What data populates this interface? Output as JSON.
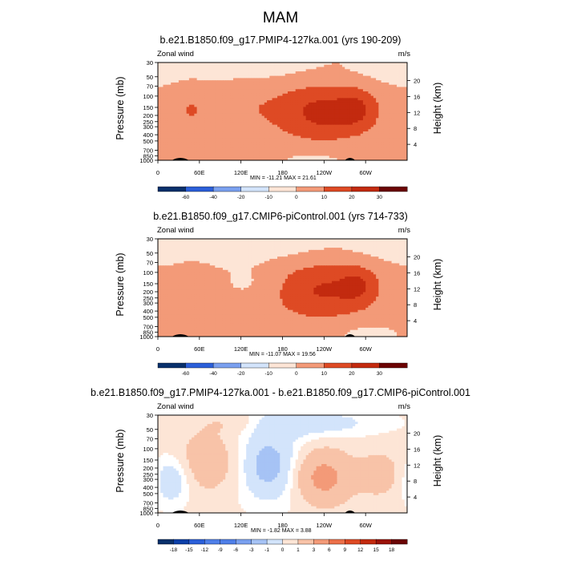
{
  "figure_title": "MAM",
  "panels": [
    {
      "title": "b.e21.B1850.f09_g17.PMIP4-127ka.001 (yrs 190-209)",
      "left_string": "Zonal wind",
      "right_string": "m/s",
      "stats": "MIN = -11.21  MAX =  21.61"
    },
    {
      "title": "b.e21.B1850.f09_g17.CMIP6-piControl.001 (yrs 714-733)",
      "left_string": "Zonal wind",
      "right_string": "m/s",
      "stats": "MIN = -11.07  MAX =  19.56"
    },
    {
      "title": "b.e21.B1850.f09_g17.PMIP4-127ka.001 - b.e21.B1850.f09_g17.CMIP6-piControl.001",
      "left_string": "Zonal wind",
      "right_string": "m/s",
      "stats": "MIN = -1.82  MAX =  3.88"
    }
  ],
  "axes": {
    "left_label": "Pressure (mb)",
    "right_label": "Height (km)"
  },
  "colors": {
    "neg_palette": [
      "#08306b",
      "#0b3fa8",
      "#2b5fd9",
      "#4f7fe8",
      "#7aa0ef",
      "#a6c3f5",
      "#d3e4fb"
    ],
    "pos_palette": [
      "#fde5d6",
      "#f8c3a8",
      "#f39a78",
      "#ec7049",
      "#de4a24",
      "#c32a0f",
      "#9b1207",
      "#6b0303"
    ]
  },
  "chart_data": [
    {
      "type": "heatmap",
      "variable": "Zonal wind",
      "units": "m/s",
      "x_ticks": [
        "0",
        "60E",
        "120E",
        "180",
        "120W",
        "60W"
      ],
      "x_tick_lon": [
        0,
        60,
        120,
        180,
        240,
        300
      ],
      "xlim": [
        0,
        360
      ],
      "y_ticks": [
        30,
        50,
        70,
        100,
        150,
        200,
        250,
        300,
        400,
        500,
        700,
        850,
        1000
      ],
      "ylim": [
        1000,
        30
      ],
      "y_log": true,
      "right_ticks_km": [
        4,
        8,
        12,
        16,
        20
      ],
      "levels": [
        -60,
        -40,
        -20,
        -10,
        0,
        10,
        20,
        30
      ],
      "colorbar_labels": [
        "-60",
        "-40",
        "-20",
        "-10",
        "0",
        "10",
        "20",
        "30"
      ],
      "min": -11.21,
      "max": 21.61,
      "features": [
        {
          "lon": 240,
          "p": 180,
          "value": 21,
          "wx": 45,
          "wy": 1.5
        },
        {
          "lon": 290,
          "p": 160,
          "value": 12,
          "wx": 20,
          "wy": 1.0
        },
        {
          "lon": 120,
          "p": 150,
          "value": 7,
          "wx": 55,
          "wy": 1.6
        },
        {
          "lon": 45,
          "p": 170,
          "value": 6,
          "wx": 18,
          "wy": 1.5
        },
        {
          "lon": 100,
          "p": 600,
          "value": 5,
          "wx": 25,
          "wy": 1.0
        },
        {
          "lon": 80,
          "p": 40,
          "value": -6,
          "wx": 160,
          "wy": 0.9
        },
        {
          "lon": 230,
          "p": 850,
          "value": -4,
          "wx": 50,
          "wy": 0.6
        },
        {
          "lon": 10,
          "p": 800,
          "value": 4,
          "wx": 15,
          "wy": 0.6
        }
      ]
    },
    {
      "type": "heatmap",
      "variable": "Zonal wind",
      "units": "m/s",
      "x_ticks": [
        "0",
        "60E",
        "120E",
        "180",
        "120W",
        "60W"
      ],
      "x_tick_lon": [
        0,
        60,
        120,
        180,
        240,
        300
      ],
      "xlim": [
        0,
        360
      ],
      "y_ticks": [
        30,
        50,
        70,
        100,
        150,
        200,
        250,
        300,
        400,
        500,
        700,
        850,
        1000
      ],
      "ylim": [
        1000,
        30
      ],
      "y_log": true,
      "right_ticks_km": [
        4,
        8,
        12,
        16,
        20
      ],
      "levels": [
        -60,
        -40,
        -20,
        -10,
        0,
        10,
        20,
        30
      ],
      "colorbar_labels": [
        "-60",
        "-40",
        "-20",
        "-10",
        "0",
        "10",
        "20",
        "30"
      ],
      "min": -11.07,
      "max": 19.56,
      "features": [
        {
          "lon": 235,
          "p": 190,
          "value": 19,
          "wx": 50,
          "wy": 1.5
        },
        {
          "lon": 290,
          "p": 160,
          "value": 12,
          "wx": 20,
          "wy": 1.0
        },
        {
          "lon": 50,
          "p": 180,
          "value": 5,
          "wx": 20,
          "wy": 1.4
        },
        {
          "lon": 110,
          "p": 700,
          "value": 4,
          "wx": 40,
          "wy": 0.9
        },
        {
          "lon": 80,
          "p": 40,
          "value": -7,
          "wx": 160,
          "wy": 0.9
        },
        {
          "lon": 140,
          "p": 150,
          "value": -4,
          "wx": 30,
          "wy": 0.8
        },
        {
          "lon": 300,
          "p": 900,
          "value": -5,
          "wx": 30,
          "wy": 0.5
        }
      ]
    },
    {
      "type": "heatmap",
      "variable": "Zonal wind",
      "units": "m/s",
      "x_ticks": [
        "0",
        "60E",
        "120E",
        "180",
        "120W",
        "60W"
      ],
      "x_tick_lon": [
        0,
        60,
        120,
        180,
        240,
        300
      ],
      "xlim": [
        0,
        360
      ],
      "y_ticks": [
        30,
        50,
        70,
        100,
        150,
        200,
        250,
        300,
        400,
        500,
        700,
        850,
        1000
      ],
      "ylim": [
        1000,
        30
      ],
      "y_log": true,
      "right_ticks_km": [
        4,
        8,
        12,
        16,
        20
      ],
      "levels": [
        -18,
        -15,
        -12,
        -9,
        -6,
        -3,
        -1,
        0,
        1,
        3,
        6,
        9,
        12,
        15,
        18
      ],
      "colorbar_labels": [
        "-18",
        "-15",
        "-12",
        "-9",
        "-6",
        "-3",
        "-1",
        "0",
        "1",
        "3",
        "6",
        "9",
        "12",
        "15",
        "18"
      ],
      "min": -1.82,
      "max": 3.88,
      "features": [
        {
          "lon": 240,
          "p": 280,
          "value": 3.5,
          "wx": 25,
          "wy": 1.2
        },
        {
          "lon": 70,
          "p": 160,
          "value": 1.5,
          "wx": 30,
          "wy": 1.5
        },
        {
          "lon": 160,
          "p": 180,
          "value": -1.8,
          "wx": 30,
          "wy": 1.8
        },
        {
          "lon": 20,
          "p": 300,
          "value": -1.5,
          "wx": 20,
          "wy": 1.2
        },
        {
          "lon": 320,
          "p": 250,
          "value": 1.2,
          "wx": 25,
          "wy": 1.2
        },
        {
          "lon": 200,
          "p": 40,
          "value": -1.2,
          "wx": 80,
          "wy": 0.7
        },
        {
          "lon": 110,
          "p": 40,
          "value": 1.0,
          "wx": 40,
          "wy": 0.6
        }
      ]
    }
  ]
}
